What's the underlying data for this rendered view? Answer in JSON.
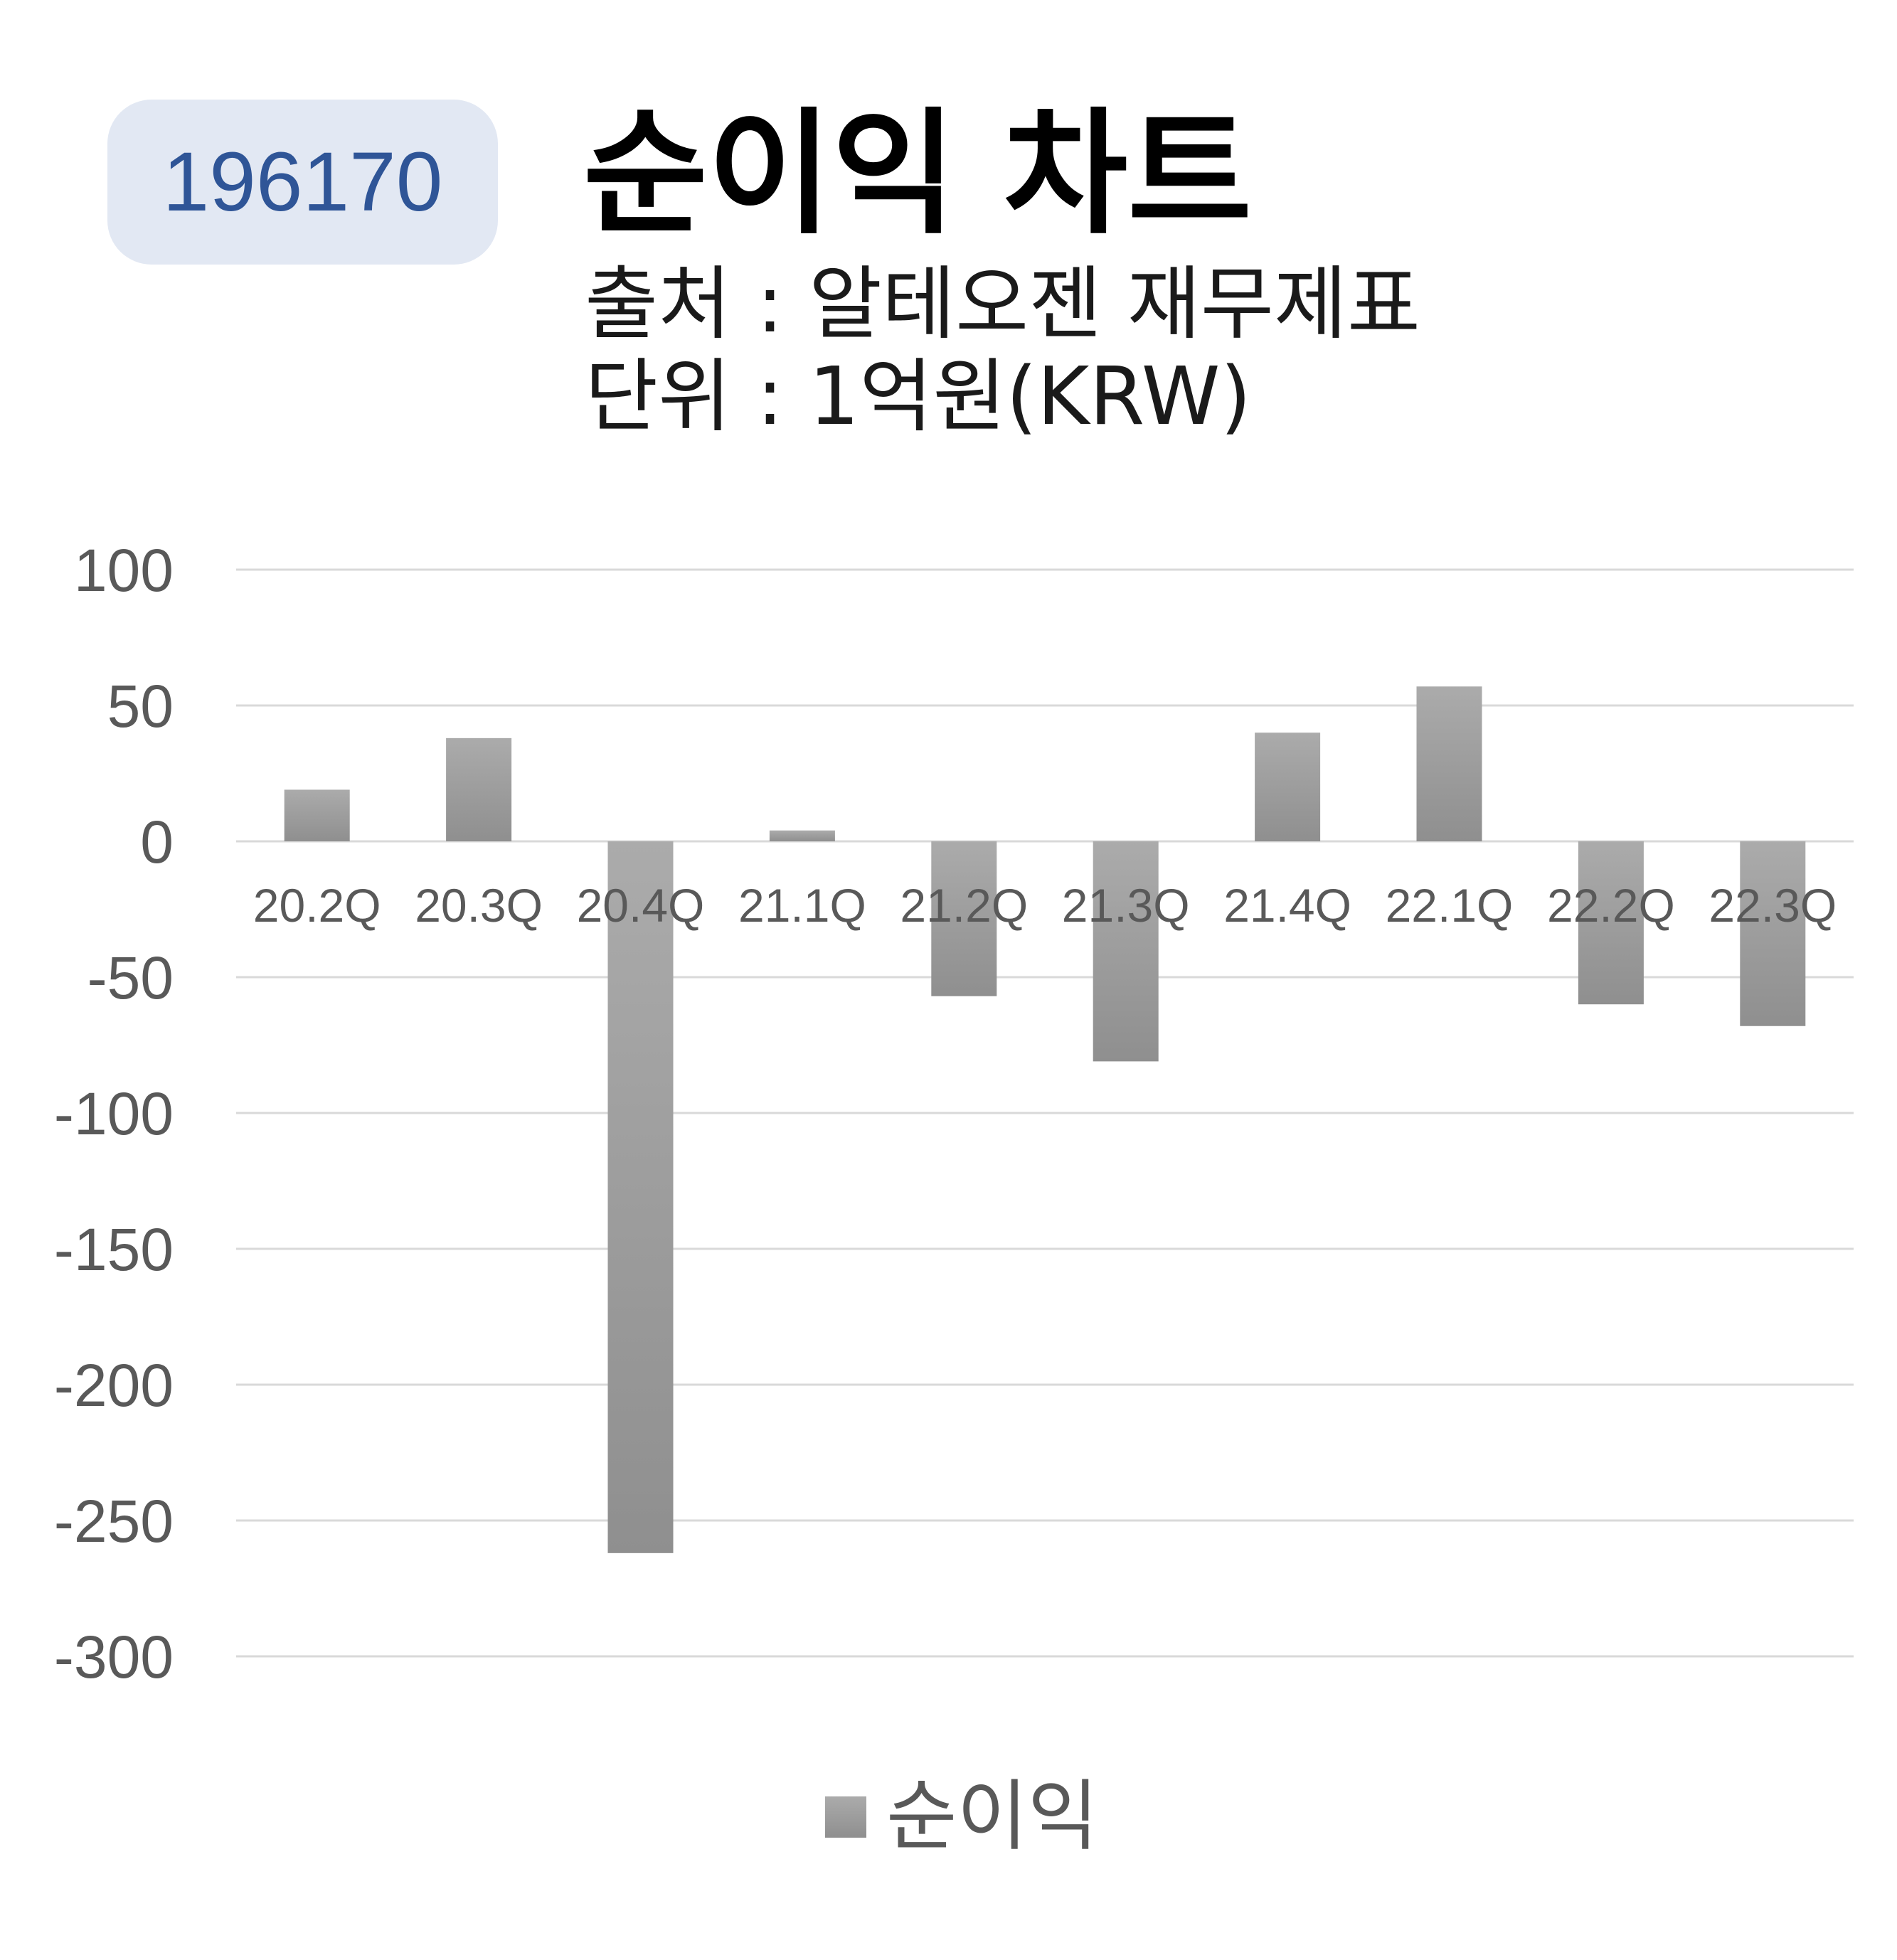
{
  "header": {
    "code": "196170",
    "title": "순이익 차트",
    "source": "출처 : 알테오젠 재무제표",
    "unit": "단위 : 1억원(KRW)"
  },
  "chart_data": {
    "type": "bar",
    "categories": [
      "20.2Q",
      "20.3Q",
      "20.4Q",
      "21.1Q",
      "21.2Q",
      "21.3Q",
      "21.4Q",
      "22.1Q",
      "22.2Q",
      "22.3Q"
    ],
    "series": [
      {
        "name": "순이익",
        "values": [
          19,
          38,
          -262,
          4,
          -57,
          -81,
          40,
          57,
          -60,
          -68
        ]
      }
    ],
    "ylim": [
      -300,
      100
    ],
    "yticks": [
      "100",
      "50",
      "0",
      "-50",
      "-100",
      "-150",
      "-200",
      "-250",
      "-300"
    ],
    "grid": true,
    "legend_position": "bottom",
    "colors": {
      "bar_top": "#ababab",
      "bar_bottom": "#8f8f8f",
      "grid": "#d9d9d9",
      "axis_text": "#595959"
    }
  }
}
